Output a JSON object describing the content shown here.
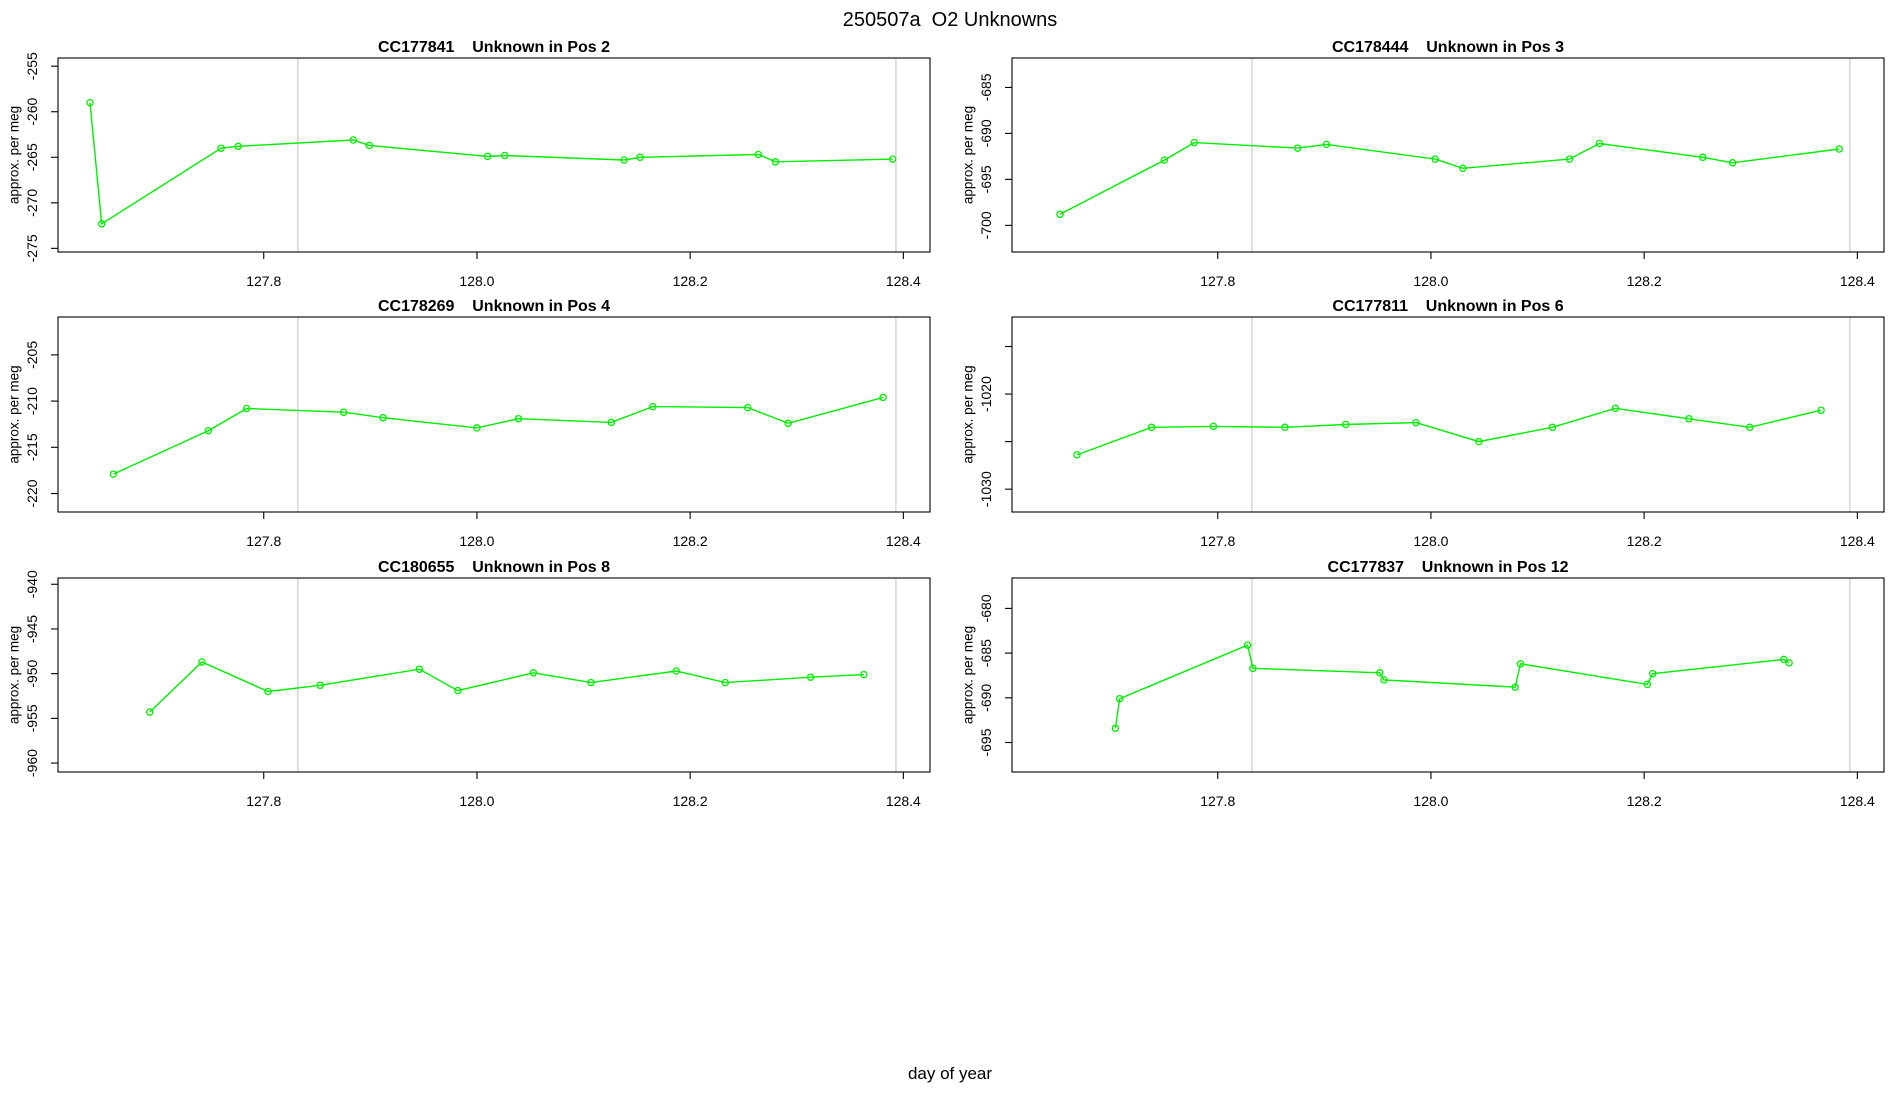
{
  "main_title": "250507a  O2 Unknowns",
  "x_axis_label": "day of year",
  "y_axis_label": "approx. per meg",
  "colors": {
    "series": "#00EE00",
    "day_boundary": "#CDCDCD",
    "axis": "#000000",
    "background": "#FFFFFF"
  },
  "x_axis": {
    "lim": [
      127.607,
      128.425
    ],
    "ticks": [
      127.8,
      128.0,
      128.2,
      128.4
    ],
    "tick_labels": [
      "127.8",
      "128.0",
      "128.2",
      "128.4"
    ],
    "day_boundaries": [
      127.832,
      128.393
    ]
  },
  "chart_data": [
    {
      "type": "line",
      "sample_id": "CC177841",
      "title_suffix": "Unknown in Pos 2",
      "position": 2,
      "ylim": [
        -275.4,
        -254.1
      ],
      "yticks": [
        -275,
        -270,
        -265,
        -260,
        -255
      ],
      "ytick_labels": [
        "-275",
        "-270",
        "-265",
        "-260",
        "-255"
      ],
      "x": [
        127.637,
        127.648,
        127.76,
        127.776,
        127.884,
        127.899,
        128.01,
        128.026,
        128.138,
        128.153,
        128.264,
        128.28,
        128.39
      ],
      "y": [
        -259.0,
        -272.3,
        -264.0,
        -263.8,
        -263.1,
        -263.7,
        -264.9,
        -264.8,
        -265.3,
        -265.0,
        -264.7,
        -265.5,
        -265.2
      ]
    },
    {
      "type": "line",
      "sample_id": "CC178444",
      "title_suffix": "Unknown in Pos 3",
      "position": 3,
      "ylim": [
        -702.9,
        -681.8
      ],
      "yticks": [
        -700,
        -695,
        -690,
        -685
      ],
      "ytick_labels": [
        "-700",
        "-695",
        "-690",
        "-685"
      ],
      "x": [
        127.652,
        127.75,
        127.778,
        127.875,
        127.902,
        128.004,
        128.03,
        128.13,
        128.158,
        128.255,
        128.283,
        128.383
      ],
      "y": [
        -698.8,
        -692.9,
        -691.0,
        -691.6,
        -691.2,
        -692.8,
        -693.8,
        -692.8,
        -691.1,
        -692.6,
        -693.2,
        -691.7
      ]
    },
    {
      "type": "line",
      "sample_id": "CC178269",
      "title_suffix": "Unknown in Pos 4",
      "position": 4,
      "ylim": [
        -222.0,
        -200.9
      ],
      "yticks": [
        -220,
        -215,
        -210,
        -205
      ],
      "ytick_labels": [
        "-220",
        "-215",
        "-210",
        "-205"
      ],
      "x": [
        127.659,
        127.748,
        127.784,
        127.875,
        127.912,
        128.0,
        128.039,
        128.126,
        128.165,
        128.254,
        128.292,
        128.381
      ],
      "y": [
        -217.9,
        -213.2,
        -210.8,
        -211.2,
        -211.8,
        -212.9,
        -211.9,
        -212.3,
        -210.6,
        -210.7,
        -212.4,
        -209.6
      ]
    },
    {
      "type": "line",
      "sample_id": "CC177811",
      "title_suffix": "Unknown in Pos 6",
      "position": 6,
      "ylim": [
        -1032.4,
        -1011.9
      ],
      "yticks": [
        -1030,
        -1025,
        -1020,
        -1015
      ],
      "ytick_labels": [
        "-1030",
        "",
        "-1020",
        ""
      ],
      "x": [
        127.668,
        127.738,
        127.796,
        127.863,
        127.92,
        127.986,
        128.045,
        128.114,
        128.173,
        128.242,
        128.299,
        128.366
      ],
      "y": [
        -1026.4,
        -1023.5,
        -1023.4,
        -1023.5,
        -1023.2,
        -1023.0,
        -1025.0,
        -1023.5,
        -1021.5,
        -1022.6,
        -1023.5,
        -1021.7
      ]
    },
    {
      "type": "line",
      "sample_id": "CC180655",
      "title_suffix": "Unknown in Pos 8",
      "position": 8,
      "ylim": [
        -961.0,
        -939.3
      ],
      "yticks": [
        -960,
        -955,
        -950,
        -945,
        -940
      ],
      "ytick_labels": [
        "-960",
        "-955",
        "-950",
        "-945",
        "-940"
      ],
      "x": [
        127.693,
        127.742,
        127.804,
        127.853,
        127.946,
        127.982,
        128.053,
        128.107,
        128.187,
        128.233,
        128.313,
        128.363
      ],
      "y": [
        -954.3,
        -948.7,
        -952.0,
        -951.3,
        -949.5,
        -951.9,
        -949.9,
        -951.0,
        -949.7,
        -951.0,
        -950.4,
        -950.1
      ]
    },
    {
      "type": "line",
      "sample_id": "CC177837",
      "title_suffix": "Unknown in Pos 12",
      "position": 12,
      "ylim": [
        -698.3,
        -676.6
      ],
      "yticks": [
        -695,
        -690,
        -685,
        -680
      ],
      "ytick_labels": [
        "-695",
        "-690",
        "-685",
        "-680"
      ],
      "x": [
        127.704,
        127.708,
        127.828,
        127.833,
        127.952,
        127.956,
        128.079,
        128.084,
        128.203,
        128.208,
        128.331,
        128.336
      ],
      "y": [
        -693.4,
        -690.1,
        -684.1,
        -686.7,
        -687.2,
        -688.0,
        -688.8,
        -686.2,
        -688.5,
        -687.3,
        -685.7,
        -686.1
      ]
    }
  ]
}
